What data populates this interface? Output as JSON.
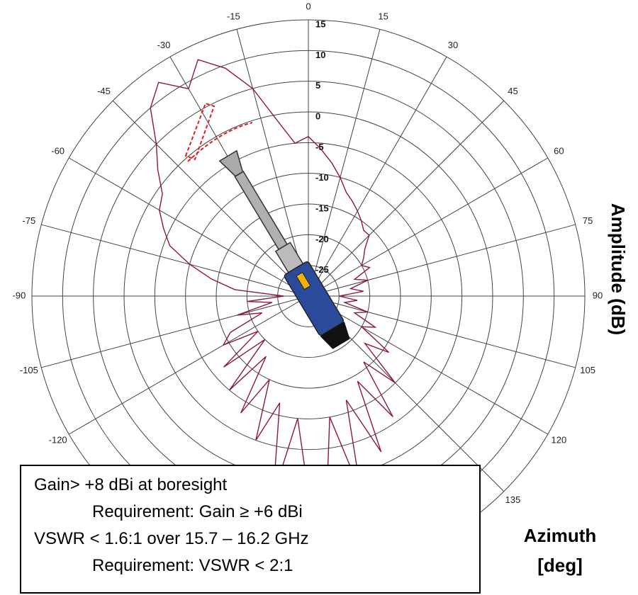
{
  "chart_data": {
    "type": "polar",
    "rlabel": "Amplitude (dB)",
    "xlabel": [
      "Azimuth",
      "[deg]"
    ],
    "rlim": [
      -30,
      15
    ],
    "rticks": [
      -25,
      -20,
      -15,
      -10,
      -5,
      0,
      5,
      10,
      15
    ],
    "thetaticks": [
      -120,
      -105,
      -90,
      -75,
      -60,
      -45,
      -30,
      -15,
      0,
      15,
      30,
      45,
      60,
      75,
      90,
      105,
      120,
      135
    ],
    "grid": true,
    "series": [
      {
        "color": "#8b1a3a",
        "x": [
          -180,
          -175,
          -170,
          -165,
          -160,
          -155,
          -150,
          -145,
          -140,
          -135,
          -130,
          -125,
          -120,
          -115,
          -110,
          -105,
          -100,
          -95,
          -90,
          -85,
          -80,
          -75,
          -70,
          -65,
          -60,
          -55,
          -50,
          -45,
          -40,
          -35,
          -30,
          -25,
          -20,
          -15,
          -10,
          -5,
          0,
          5,
          10,
          15,
          20,
          25,
          30,
          35,
          40,
          45,
          50,
          55,
          60,
          65,
          70,
          75,
          80,
          85,
          90,
          95,
          100,
          105,
          110,
          115,
          120,
          125,
          130,
          135,
          140,
          145,
          150,
          155,
          160,
          165,
          170,
          175
        ],
        "values": [
          2,
          -10,
          3,
          -12,
          -5,
          -15,
          -8,
          -18,
          -10,
          -20,
          -12,
          -20,
          -14,
          -16,
          -22,
          -18,
          -24,
          -20,
          -26,
          -18,
          -14,
          -10,
          -6,
          -4,
          -2,
          -1,
          2,
          5,
          10,
          12.5,
          9,
          12.5,
          9.5,
          5,
          -1,
          -5,
          -4,
          -6,
          -8,
          -10,
          -12,
          -13,
          -14,
          -15,
          -16,
          -16,
          -18,
          -19,
          -20,
          -19,
          -22,
          -20,
          -23,
          -21,
          -25,
          -22,
          -24,
          -20,
          -22,
          -18,
          -20,
          -14,
          -18,
          -10,
          -16,
          -6,
          -14,
          -2,
          -12,
          3,
          -10,
          4
        ]
      }
    ]
  },
  "notes": [
    "Gain> +8 dBi at boresight",
    "Requirement: Gain ≥ +6 dBi",
    "VSWR < 1.6:1 over 15.7 – 16.2 GHz",
    "Requirement: VSWR < 2:1"
  ]
}
